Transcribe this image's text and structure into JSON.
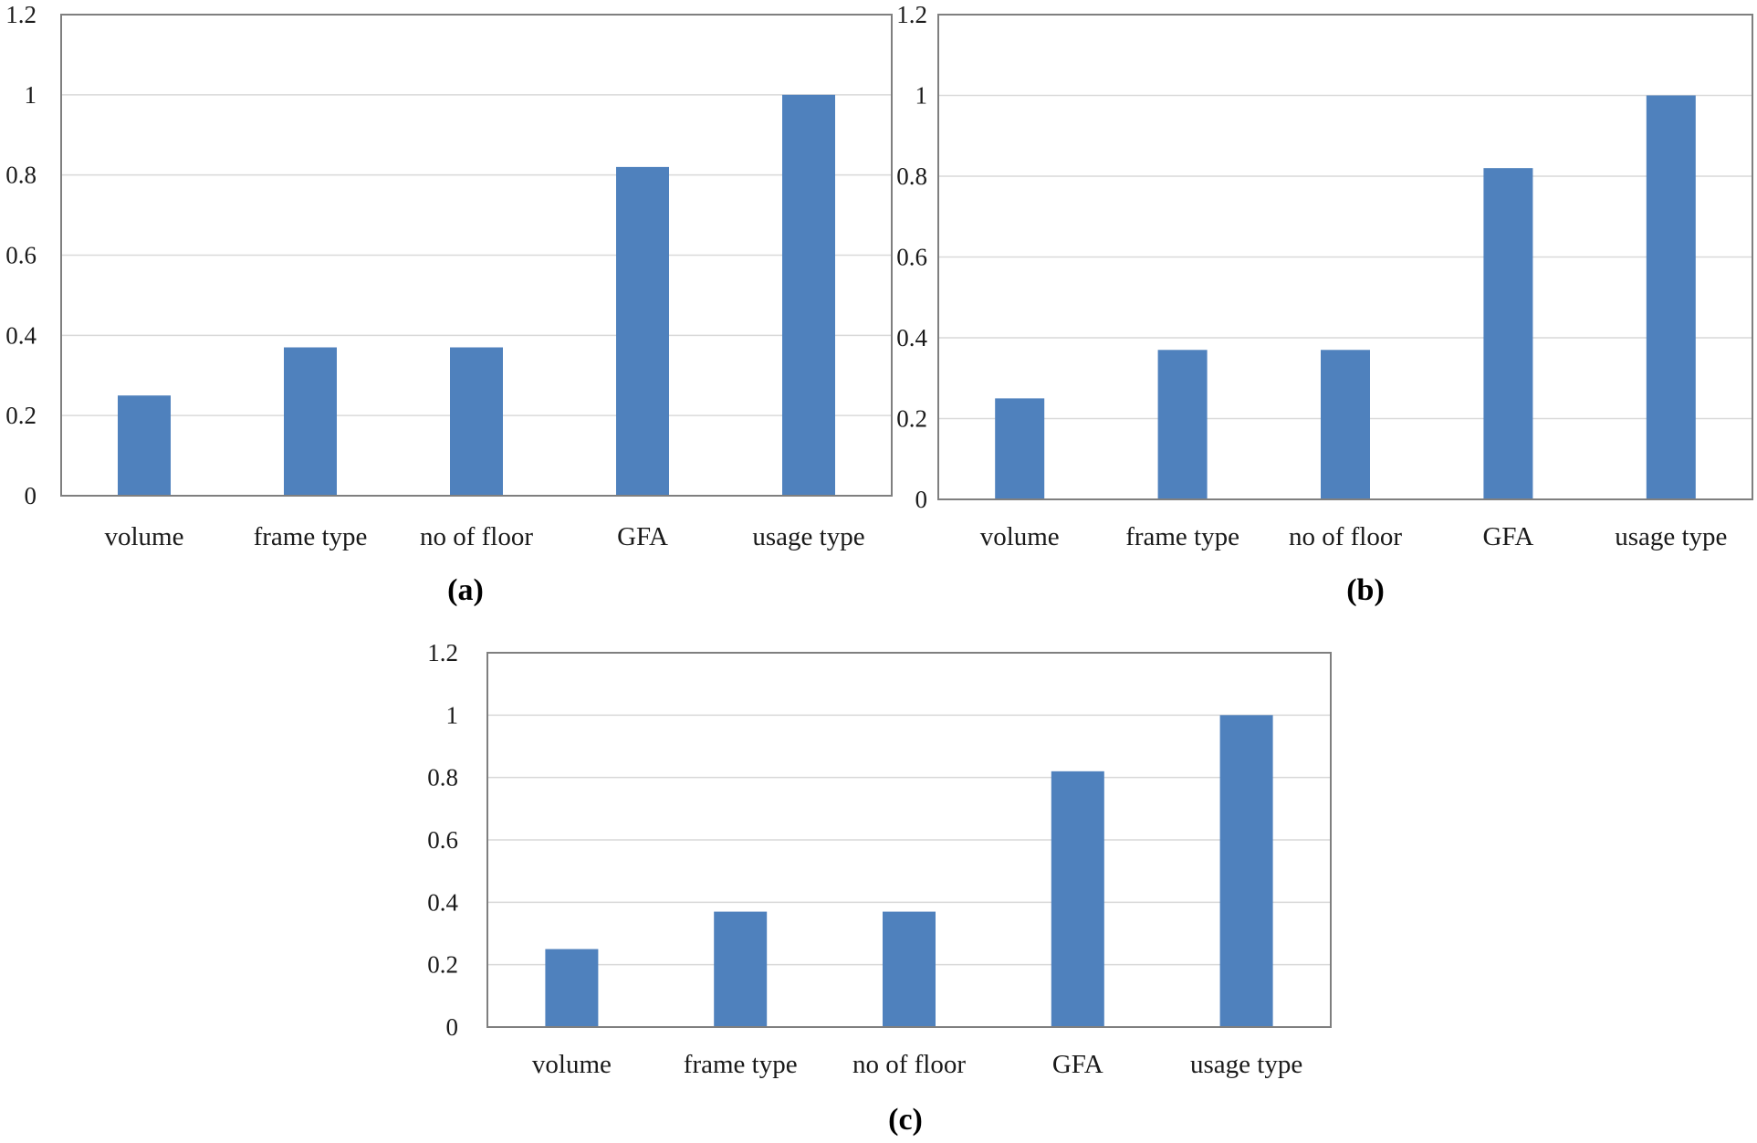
{
  "figure": {
    "colors": {
      "bar": "#4f81bd",
      "grid": "#d9d9d9",
      "frame": "#7f7f7f"
    }
  },
  "chart_data": [
    {
      "type": "bar",
      "panel_label": "(a)",
      "categories": [
        "volume",
        "frame type",
        "no of floor",
        "GFA",
        "usage type"
      ],
      "values": [
        0.25,
        0.37,
        0.37,
        0.82,
        1.0
      ],
      "ylim": [
        0,
        1.2
      ],
      "yticks": [
        "0",
        "0.2",
        "0.4",
        "0.6",
        "0.8",
        "1",
        "1.2"
      ],
      "grid": true,
      "title": "",
      "xlabel": "",
      "ylabel": ""
    },
    {
      "type": "bar",
      "panel_label": "(b)",
      "categories": [
        "volume",
        "frame type",
        "no of floor",
        "GFA",
        "usage type"
      ],
      "values": [
        0.25,
        0.37,
        0.37,
        0.82,
        1.0
      ],
      "ylim": [
        0,
        1.2
      ],
      "yticks": [
        "0",
        "0.2",
        "0.4",
        "0.6",
        "0.8",
        "1",
        "1.2"
      ],
      "grid": true,
      "title": "",
      "xlabel": "",
      "ylabel": ""
    },
    {
      "type": "bar",
      "panel_label": "(c)",
      "categories": [
        "volume",
        "frame type",
        "no of floor",
        "GFA",
        "usage type"
      ],
      "values": [
        0.25,
        0.37,
        0.37,
        0.82,
        1.0
      ],
      "ylim": [
        0,
        1.2
      ],
      "yticks": [
        "0",
        "0.2",
        "0.4",
        "0.6",
        "0.8",
        "1",
        "1.2"
      ],
      "grid": true,
      "title": "",
      "xlabel": "",
      "ylabel": ""
    }
  ]
}
